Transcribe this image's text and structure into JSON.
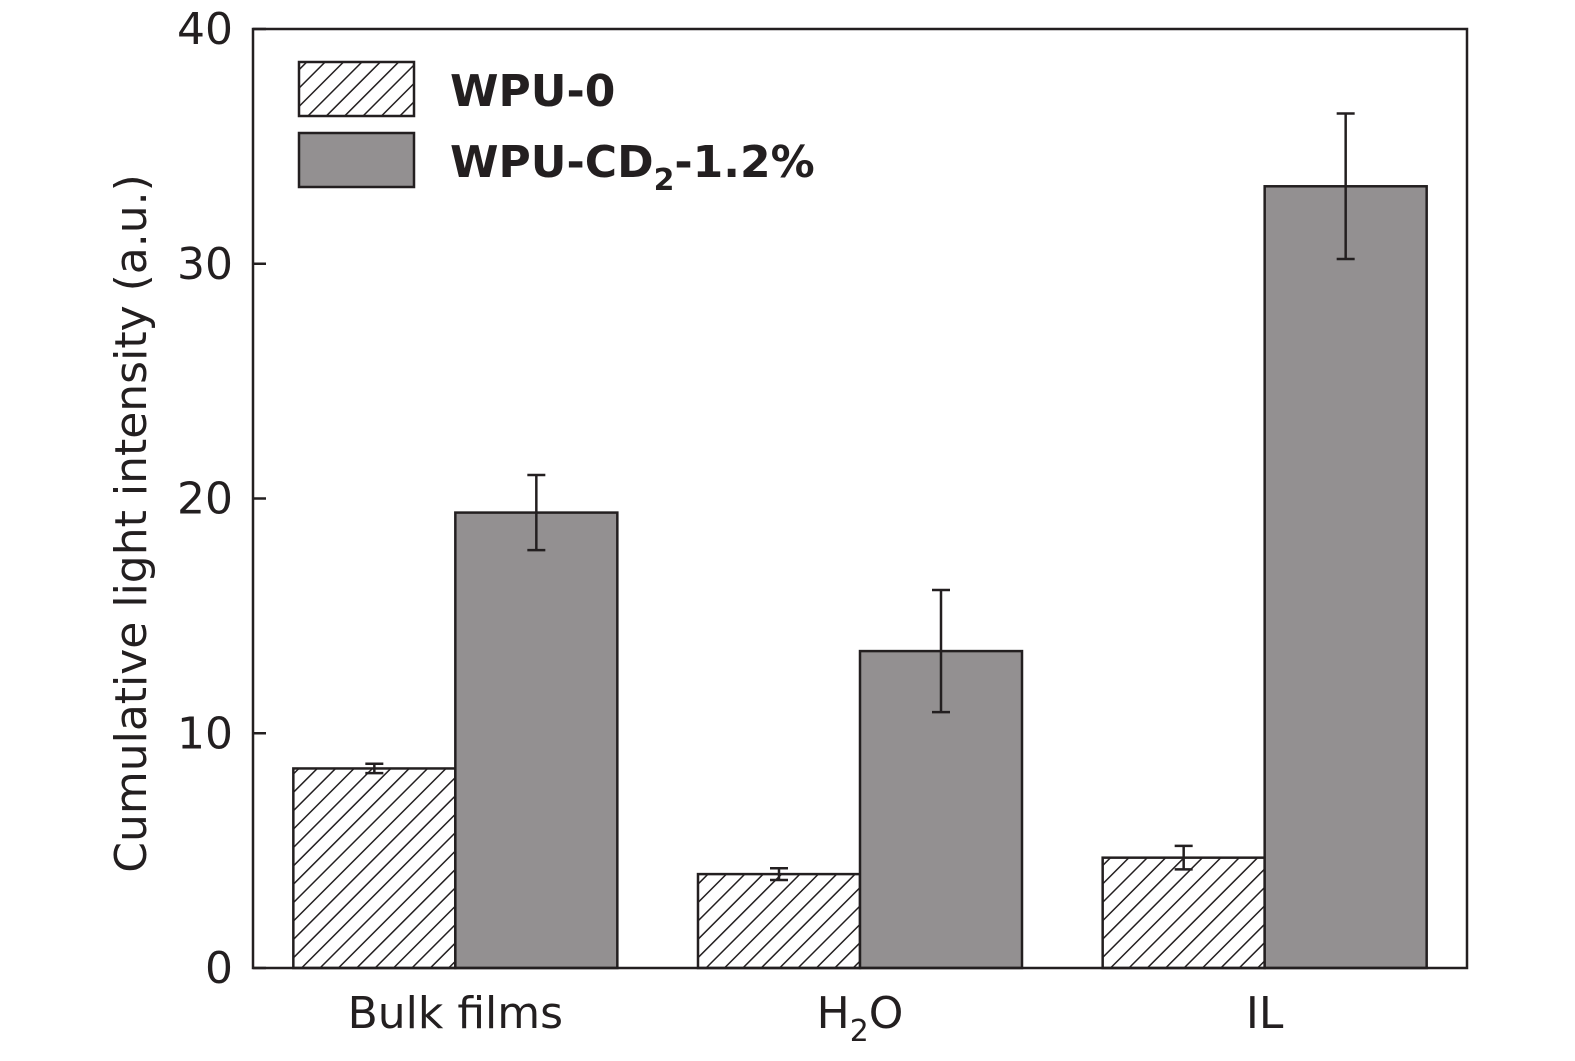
{
  "chart_data": {
    "type": "bar",
    "title": "",
    "xlabel": "",
    "ylabel": "Cumulative light intensity (a.u.)",
    "ylim": [
      0,
      40
    ],
    "yticks": [
      "0",
      "10",
      "20",
      "30",
      "40"
    ],
    "grid": false,
    "legend_position": "top-left",
    "categories": [
      {
        "main": "Bulk films",
        "sub": "",
        "tail": ""
      },
      {
        "main": "H",
        "sub": "2",
        "tail": "O"
      },
      {
        "main": "IL",
        "sub": "",
        "tail": ""
      }
    ],
    "series": [
      {
        "name": "WPU-0",
        "name_parts": {
          "main": "WPU-0",
          "sub": "",
          "tail": ""
        },
        "fill": "hatch",
        "values": [
          8.5,
          4.0,
          4.7
        ],
        "errors": [
          0.2,
          0.25,
          0.5
        ]
      },
      {
        "name": "WPU-CD2-1.2%",
        "name_parts": {
          "main": "WPU-CD",
          "sub": "2",
          "tail": "-1.2%"
        },
        "fill": "#939091",
        "values": [
          19.4,
          13.5,
          33.3
        ],
        "errors": [
          1.6,
          2.6,
          3.1
        ]
      }
    ]
  }
}
